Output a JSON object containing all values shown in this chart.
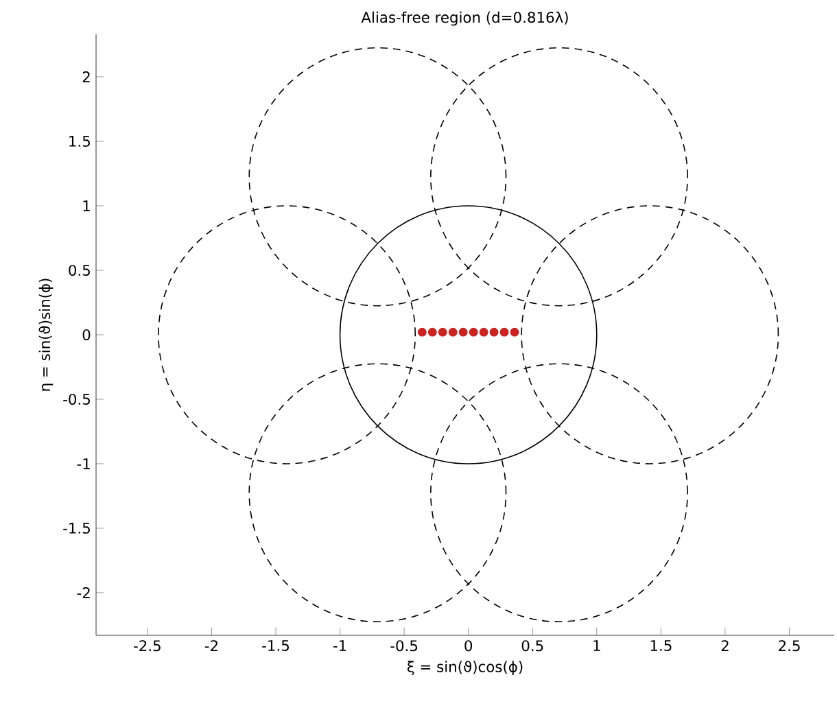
{
  "chart_data": {
    "type": "scatter",
    "title": "Alias-free region (d=0.816λ)",
    "xlabel": "ξ = sin(ϑ)cos(ϕ)",
    "ylabel": "η = sin(ϑ)sin(ϕ)",
    "xlim": [
      -2.9,
      2.85
    ],
    "ylim": [
      -2.33,
      2.33
    ],
    "xticks": [
      -2.5,
      -2,
      -1.5,
      -1,
      -0.5,
      0,
      0.5,
      1,
      1.5,
      2,
      2.5
    ],
    "yticks": [
      -2,
      -1.5,
      -1,
      -0.5,
      0,
      0.5,
      1,
      1.5,
      2
    ],
    "series": [
      {
        "color": "#cc2222",
        "marker": "circle",
        "x": [
          -0.36,
          -0.28,
          -0.2,
          -0.12,
          -0.04,
          0.04,
          0.12,
          0.2,
          0.28,
          0.36
        ],
        "values": [
          0.02,
          0.02,
          0.02,
          0.02,
          0.02,
          0.02,
          0.02,
          0.02,
          0.02,
          0.02
        ]
      }
    ]
  }
}
